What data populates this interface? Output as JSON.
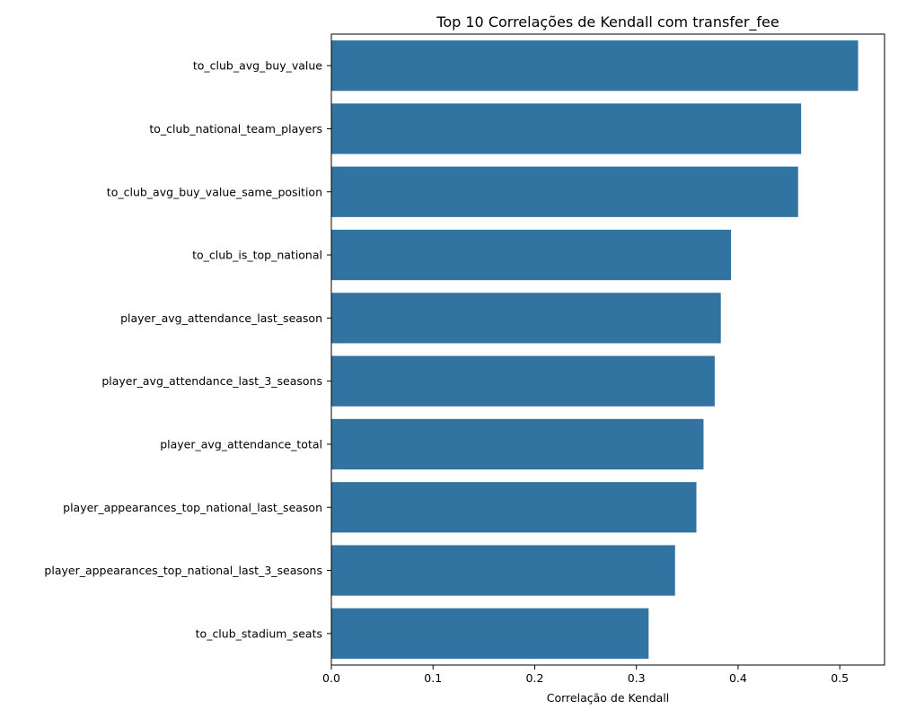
{
  "chart_data": {
    "type": "bar",
    "orientation": "horizontal",
    "title": "Top 10 Correlações de Kendall com transfer_fee",
    "xlabel": "Correlação de Kendall",
    "ylabel": "",
    "xlim": [
      0,
      0.544
    ],
    "xticks": [
      0.0,
      0.1,
      0.2,
      0.3,
      0.4,
      0.5
    ],
    "xtick_labels": [
      "0.0",
      "0.1",
      "0.2",
      "0.3",
      "0.4",
      "0.5"
    ],
    "grid": false,
    "bar_color": "#3274a1",
    "categories": [
      "to_club_avg_buy_value",
      "to_club_national_team_players",
      "to_club_avg_buy_value_same_position",
      "to_club_is_top_national",
      "player_avg_attendance_last_season",
      "player_avg_attendance_last_3_seasons",
      "player_avg_attendance_total",
      "player_appearances_top_national_last_season",
      "player_appearances_top_national_last_3_seasons",
      "to_club_stadium_seats"
    ],
    "values": [
      0.518,
      0.462,
      0.459,
      0.393,
      0.383,
      0.377,
      0.366,
      0.359,
      0.338,
      0.312
    ]
  }
}
